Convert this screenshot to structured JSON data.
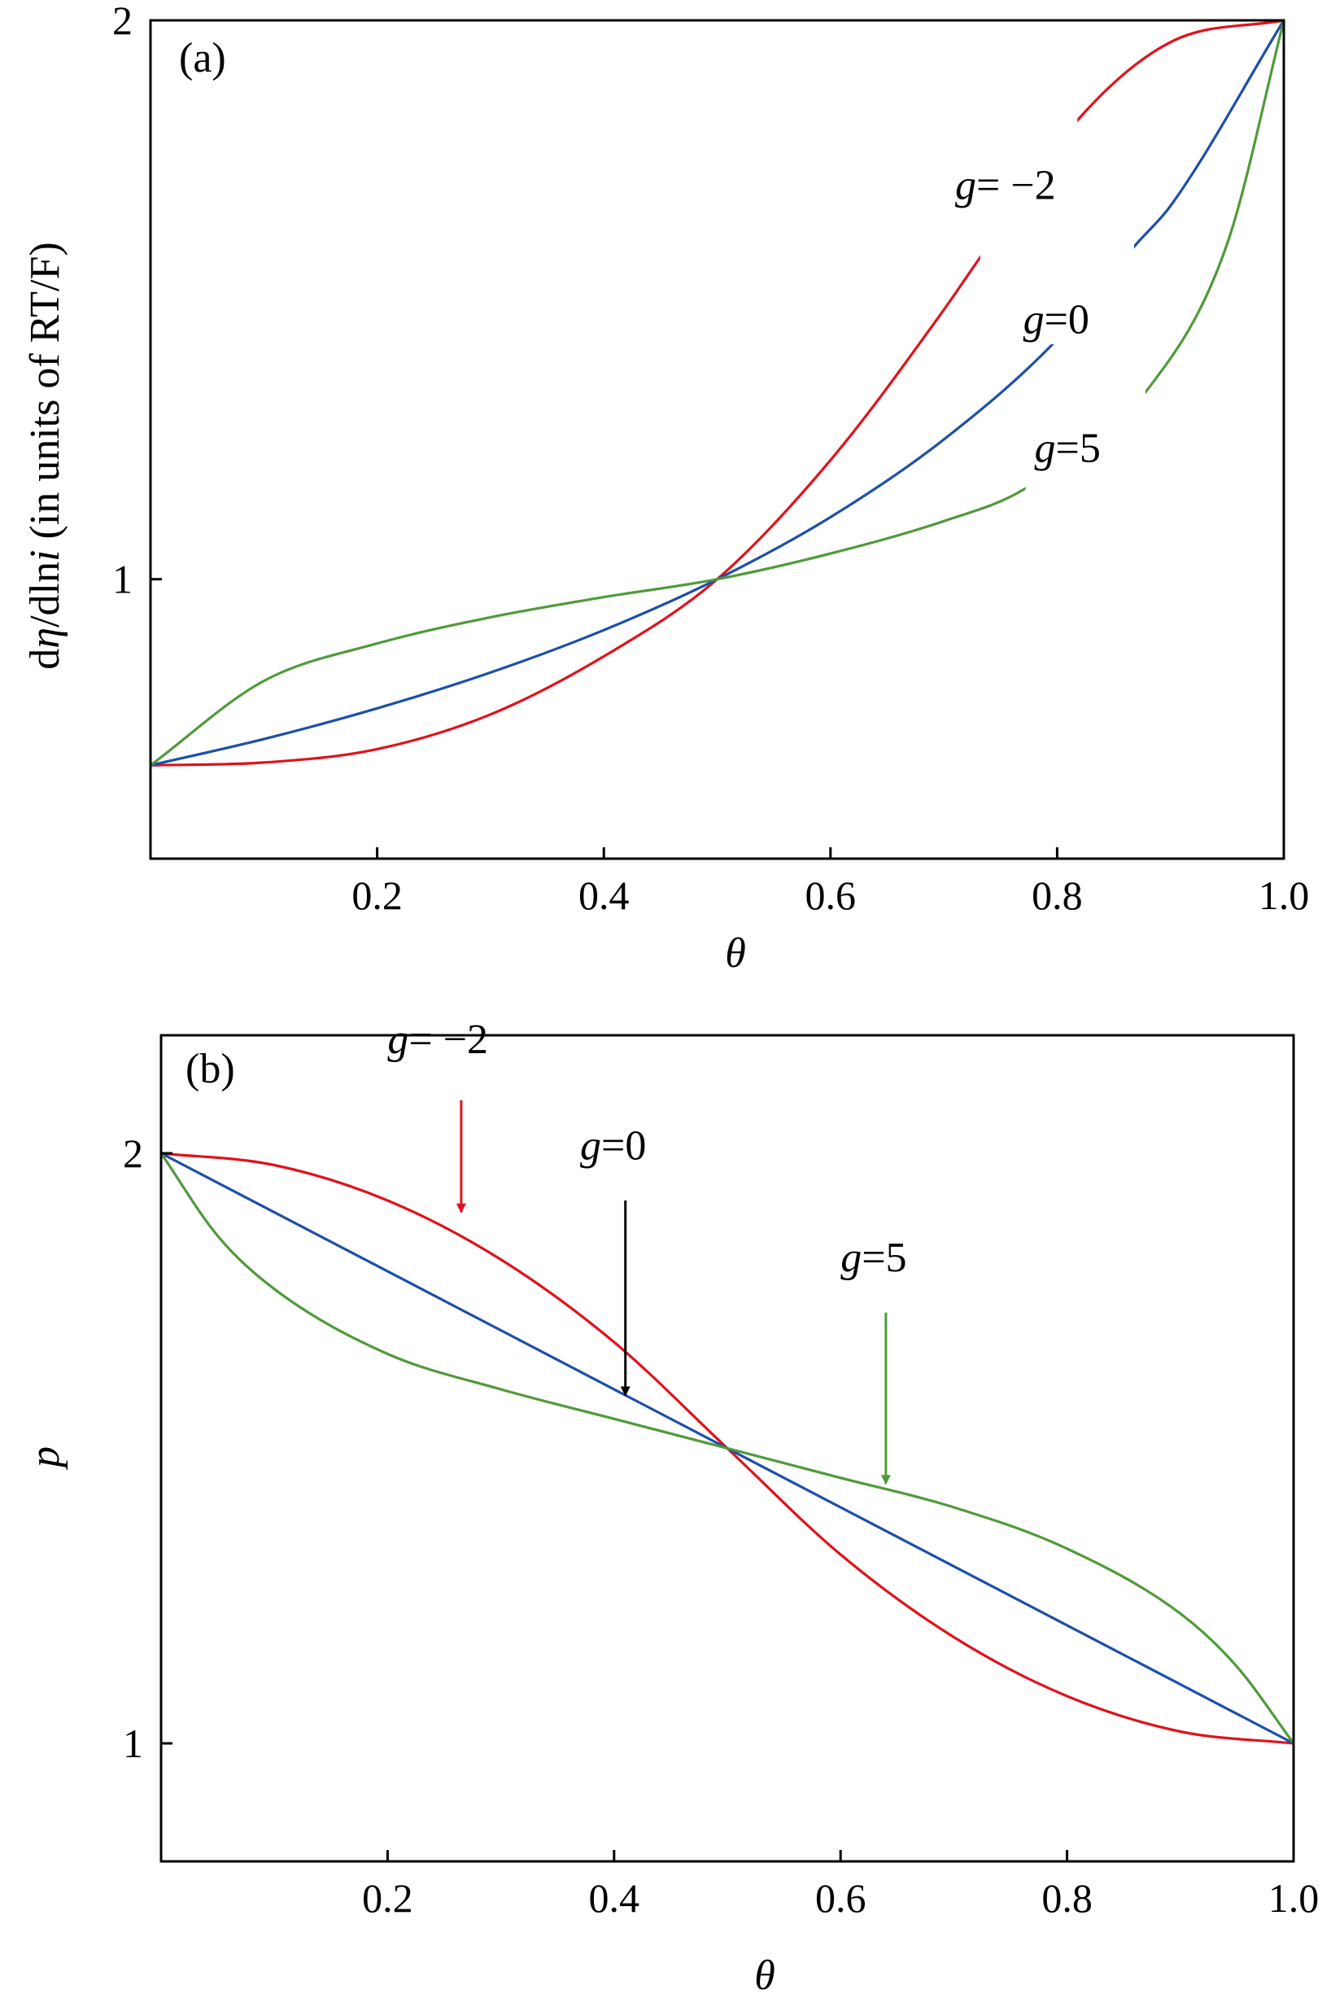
{
  "chart_data": [
    {
      "type": "line",
      "panel_label": "(a)",
      "xlabel": "θ",
      "ylabel_parts": [
        "d",
        "η",
        "/dln",
        "i",
        " (in units of RT/F)"
      ],
      "xlim": [
        0,
        1
      ],
      "ylim": [
        0.5,
        2
      ],
      "xticks": [
        0.2,
        0.4,
        0.6,
        0.8,
        1.0
      ],
      "xtick_labels": [
        "0.2",
        "0.4",
        "0.6",
        "0.8",
        "1.0"
      ],
      "yticks": [
        1,
        2
      ],
      "ytick_labels": [
        "1",
        "2"
      ],
      "grid": false,
      "legend": "none",
      "series": [
        {
          "name": "g= −2",
          "label_prefix": "g",
          "label_suffix": "= −2",
          "color": "#e0121b",
          "x": [
            0.0,
            0.1,
            0.2,
            0.3,
            0.4,
            0.5,
            0.6,
            0.7,
            0.73,
            0.82,
            0.9,
            1.0
          ],
          "y": [
            0.667,
            0.672,
            0.696,
            0.758,
            0.862,
            1.0,
            1.213,
            1.482,
            1.57,
            1.826,
            1.961,
            2.0
          ]
        },
        {
          "name": "g=0",
          "label_prefix": "g",
          "label_suffix": "=0",
          "color": "#1d4fa8",
          "x": [
            0.0,
            0.1,
            0.2,
            0.3,
            0.4,
            0.5,
            0.6,
            0.7,
            0.8,
            0.87,
            0.9,
            1.0
          ],
          "y": [
            0.667,
            0.714,
            0.769,
            0.833,
            0.909,
            1.0,
            1.111,
            1.25,
            1.429,
            1.6,
            1.668,
            2.0
          ]
        },
        {
          "name": "g=5",
          "label_prefix": "g",
          "label_suffix": "=5",
          "color": "#4f9a3a",
          "x": [
            0.0,
            0.1,
            0.2,
            0.3,
            0.4,
            0.5,
            0.6,
            0.7,
            0.77,
            0.88,
            0.95,
            1.0
          ],
          "y": [
            0.667,
            0.818,
            0.885,
            0.932,
            0.968,
            1.0,
            1.046,
            1.104,
            1.16,
            1.34,
            1.6,
            2.0
          ]
        }
      ],
      "gaps": [
        {
          "series": 0,
          "from_x": 0.73,
          "to_x": 0.82
        },
        {
          "series": 1,
          "from_x": 0.79,
          "to_x": 0.87
        },
        {
          "series": 2,
          "from_x": 0.77,
          "to_x": 0.88
        }
      ],
      "annotations": [
        {
          "series": 0,
          "text_x": 0.71,
          "text_y": 1.68
        },
        {
          "series": 1,
          "text_x": 0.77,
          "text_y": 1.44
        },
        {
          "series": 2,
          "text_x": 0.78,
          "text_y": 1.21
        }
      ]
    },
    {
      "type": "line",
      "panel_label": "(b)",
      "xlabel": "θ",
      "ylabel": "p",
      "xlim": [
        0,
        1
      ],
      "ylim": [
        0.8,
        2.2
      ],
      "xticks": [
        0.2,
        0.4,
        0.6,
        0.8,
        1.0
      ],
      "xtick_labels": [
        "0.2",
        "0.4",
        "0.6",
        "0.8",
        "1.0"
      ],
      "yticks": [
        1,
        2
      ],
      "ytick_labels": [
        "1",
        "2"
      ],
      "grid": false,
      "legend": "none",
      "series": [
        {
          "name": "g= −2",
          "label_prefix": "g",
          "label_suffix": "= −2",
          "color": "#e0121b",
          "x": [
            0.0,
            0.1,
            0.2,
            0.3,
            0.4,
            0.5,
            0.6,
            0.7,
            0.8,
            0.9,
            1.0
          ],
          "y": [
            2.0,
            1.98,
            1.92,
            1.82,
            1.68,
            1.5,
            1.32,
            1.18,
            1.08,
            1.02,
            1.0
          ]
        },
        {
          "name": "g=0",
          "label_prefix": "g",
          "label_suffix": "=0",
          "color": "#1d4fa8",
          "x": [
            0.0,
            1.0
          ],
          "y": [
            2.0,
            1.0
          ]
        },
        {
          "name": "g=5",
          "label_prefix": "g",
          "label_suffix": "=5",
          "color": "#4f9a3a",
          "x": [
            0.0,
            0.05,
            0.1,
            0.2,
            0.3,
            0.4,
            0.5,
            0.6,
            0.7,
            0.8,
            0.9,
            0.95,
            1.0
          ],
          "y": [
            2.0,
            1.86,
            1.77,
            1.66,
            1.6,
            1.55,
            1.5,
            1.45,
            1.4,
            1.33,
            1.22,
            1.13,
            1.0
          ]
        }
      ],
      "annotations": [
        {
          "series": 0,
          "text_x": 0.2,
          "text_y": 2.17,
          "arrow_from": [
            0.265,
            2.09
          ],
          "arrow_to": [
            0.265,
            1.9
          ]
        },
        {
          "series": 1,
          "text_x": 0.37,
          "text_y": 1.99,
          "arrow_from": [
            0.41,
            1.92
          ],
          "arrow_to": [
            0.41,
            1.59
          ],
          "arrow_color": "#000000"
        },
        {
          "series": 2,
          "text_x": 0.6,
          "text_y": 1.8,
          "arrow_from": [
            0.64,
            1.73
          ],
          "arrow_to": [
            0.64,
            1.44
          ]
        }
      ]
    }
  ]
}
